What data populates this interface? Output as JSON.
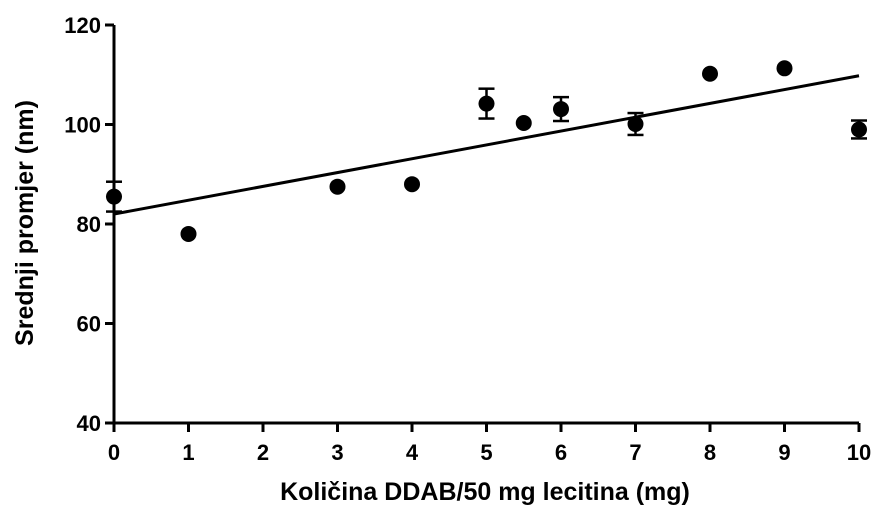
{
  "chart_data": {
    "type": "scatter",
    "xlabel": "Količina DDAB/50 mg lecitina (mg)",
    "ylabel": "Srednji promjer (nm)",
    "xlim": [
      0,
      10
    ],
    "ylim": [
      40,
      120
    ],
    "x_ticks": [
      "0",
      "1",
      "2",
      "3",
      "4",
      "5",
      "6",
      "7",
      "8",
      "9",
      "10"
    ],
    "y_ticks": [
      "40",
      "60",
      "80",
      "100",
      "120"
    ],
    "points": [
      {
        "x": 0,
        "y": 85.5,
        "err": 3.0
      },
      {
        "x": 1,
        "y": 78.0,
        "err": 0
      },
      {
        "x": 3,
        "y": 87.5,
        "err": 0
      },
      {
        "x": 4,
        "y": 88.0,
        "err": 0
      },
      {
        "x": 5,
        "y": 104.2,
        "err": 3.0
      },
      {
        "x": 5.5,
        "y": 100.3,
        "err": 0
      },
      {
        "x": 6,
        "y": 103.1,
        "err": 2.4
      },
      {
        "x": 7,
        "y": 100.1,
        "err": 2.2
      },
      {
        "x": 8,
        "y": 110.2,
        "err": 0
      },
      {
        "x": 9,
        "y": 111.3,
        "err": 0
      },
      {
        "x": 10,
        "y": 99.0,
        "err": 1.8
      }
    ],
    "fit_line": {
      "x": [
        0,
        10
      ],
      "y": [
        82.0,
        109.8
      ]
    },
    "legend": "none",
    "grid": false,
    "colors": {
      "marker": "#000000",
      "line": "#000000"
    }
  }
}
